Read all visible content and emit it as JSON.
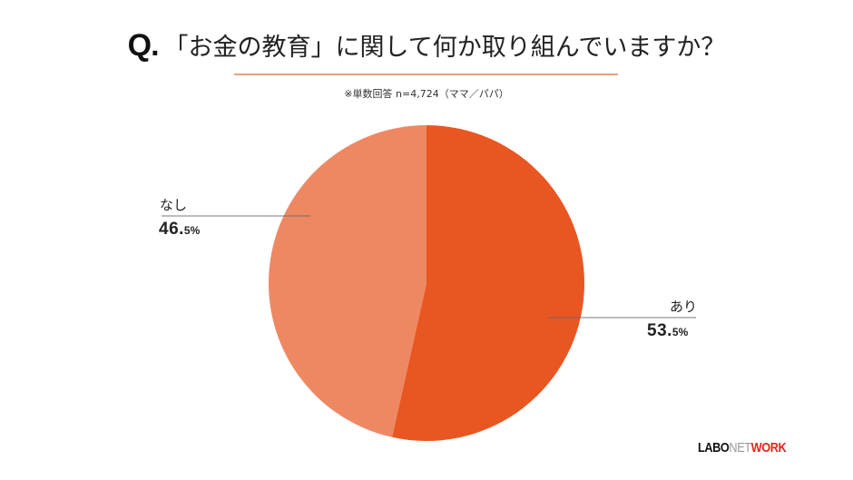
{
  "header": {
    "q_mark": "Q.",
    "question": "「お金の教育」に関して何か取り組んでいますか？",
    "underline_color": "#e8a07e",
    "note": "※単数回答 n=4,724（ママ／パパ）"
  },
  "chart_data": {
    "type": "pie",
    "title": "「お金の教育」に関して何か取り組んでいますか？",
    "subtitle": "※単数回答 n=4,724（ママ／パパ）",
    "categories": [
      "あり",
      "なし"
    ],
    "values": [
      53.5,
      46.5
    ],
    "unit": "%",
    "colors": [
      "#e85622",
      "#ee8863"
    ],
    "start_angle": "12 o'clock, clockwise",
    "legend": "none (leader-line labels)"
  },
  "labels": {
    "yes": {
      "name": "あり",
      "big": "53.",
      "small": "5%"
    },
    "no": {
      "name": "なし",
      "big": "46.",
      "small": "5%"
    }
  },
  "logo": {
    "part1": "LABO",
    "part2": "NET",
    "part3": "WORK"
  }
}
